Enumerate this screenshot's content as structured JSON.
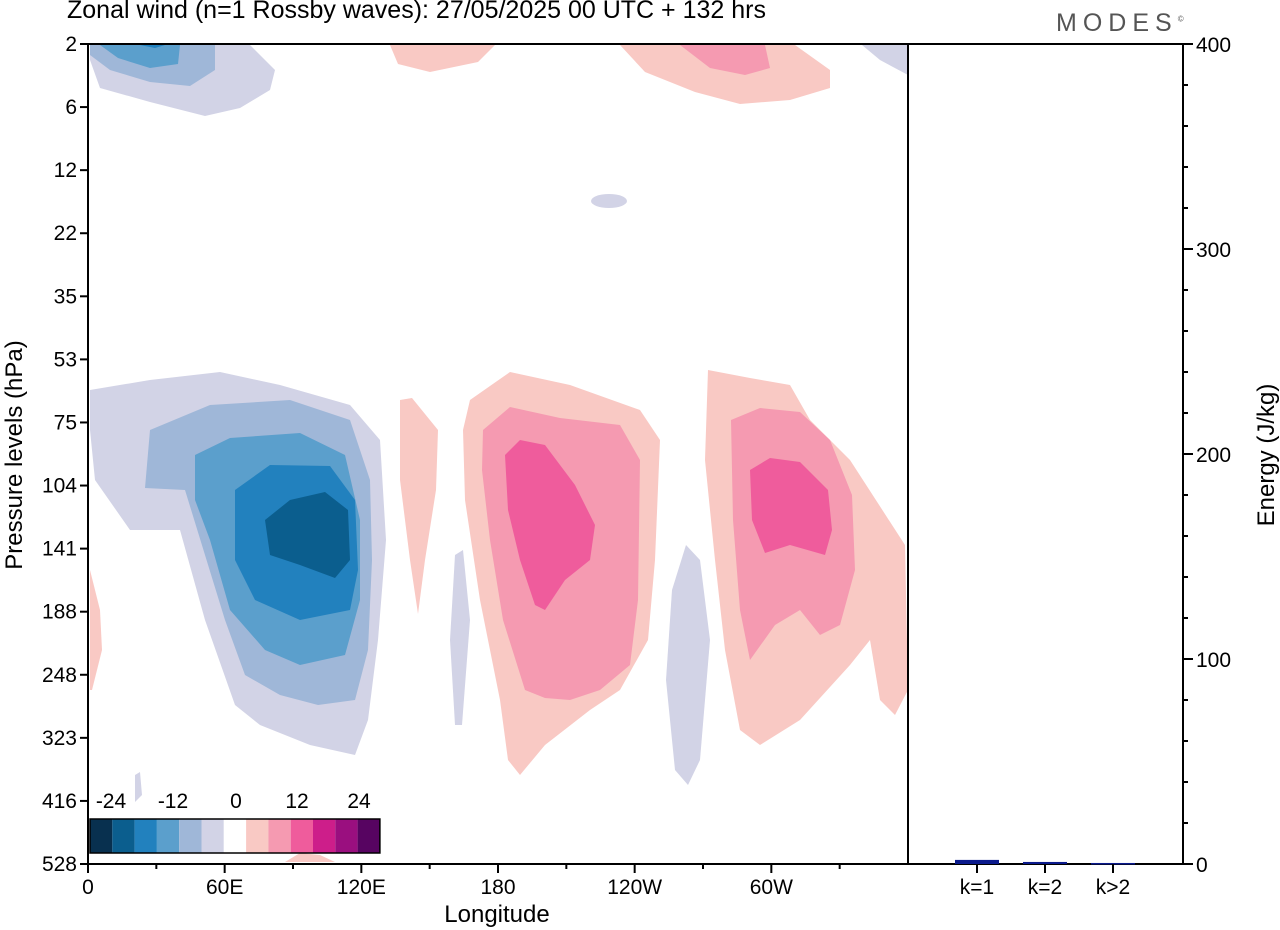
{
  "header": {
    "title": "Zonal wind (n=1 Rossby waves):  27/05/2025  00 UTC  + 132 hrs",
    "brand": "MODES",
    "brand_mark": "©"
  },
  "colors": {
    "scale": [
      "#08304f",
      "#0b5e8e",
      "#2281be",
      "#5b9fcc",
      "#9fb7d8",
      "#d2d3e6",
      "#ffffff",
      "#f9c9c4",
      "#f59ab1",
      "#ef5c9c",
      "#cd1e8a",
      "#9a0f7f",
      "#570461"
    ],
    "bars": "#0b1a8c"
  },
  "chart_data": [
    {
      "type": "heatmap",
      "title": "Zonal wind (n=1 Rossby waves):  27/05/2025  00 UTC  + 132 hrs",
      "xlabel": "Longitude",
      "ylabel": "Pressure levels (hPa)",
      "x_ticks": [
        "0",
        "60E",
        "120E",
        "180",
        "120W",
        "60W"
      ],
      "y_ticks": [
        "2",
        "6",
        "12",
        "22",
        "35",
        "53",
        "75",
        "104",
        "141",
        "188",
        "248",
        "323",
        "416",
        "528"
      ],
      "xlim": [
        0,
        360
      ],
      "colorbar": {
        "labels": [
          "-24",
          "-12",
          "0",
          "12",
          "24"
        ],
        "levels": [
          -30,
          -25,
          -20,
          -15,
          -10,
          -5,
          0,
          5,
          10,
          15,
          20,
          25,
          30
        ]
      },
      "features": [
        {
          "lon": 40,
          "level": 2,
          "min": -15
        },
        {
          "lon": 80,
          "level": 141,
          "min": -25
        },
        {
          "lon": 150,
          "level": 141,
          "max": 5
        },
        {
          "lon": 200,
          "level": 141,
          "max": 15
        },
        {
          "lon": 250,
          "level": 188,
          "min": -5
        },
        {
          "lon": 300,
          "level": 141,
          "max": 15
        },
        {
          "lon": 340,
          "level": 2,
          "max": 10
        }
      ]
    },
    {
      "type": "bar",
      "categories": [
        "k=1",
        "k=2",
        "k>2"
      ],
      "values": [
        2,
        1,
        0.5
      ],
      "ylabel": "Energy (J/kg)",
      "ylim": [
        0,
        400
      ],
      "y_ticks": [
        "0",
        "100",
        "200",
        "300",
        "400"
      ]
    }
  ]
}
